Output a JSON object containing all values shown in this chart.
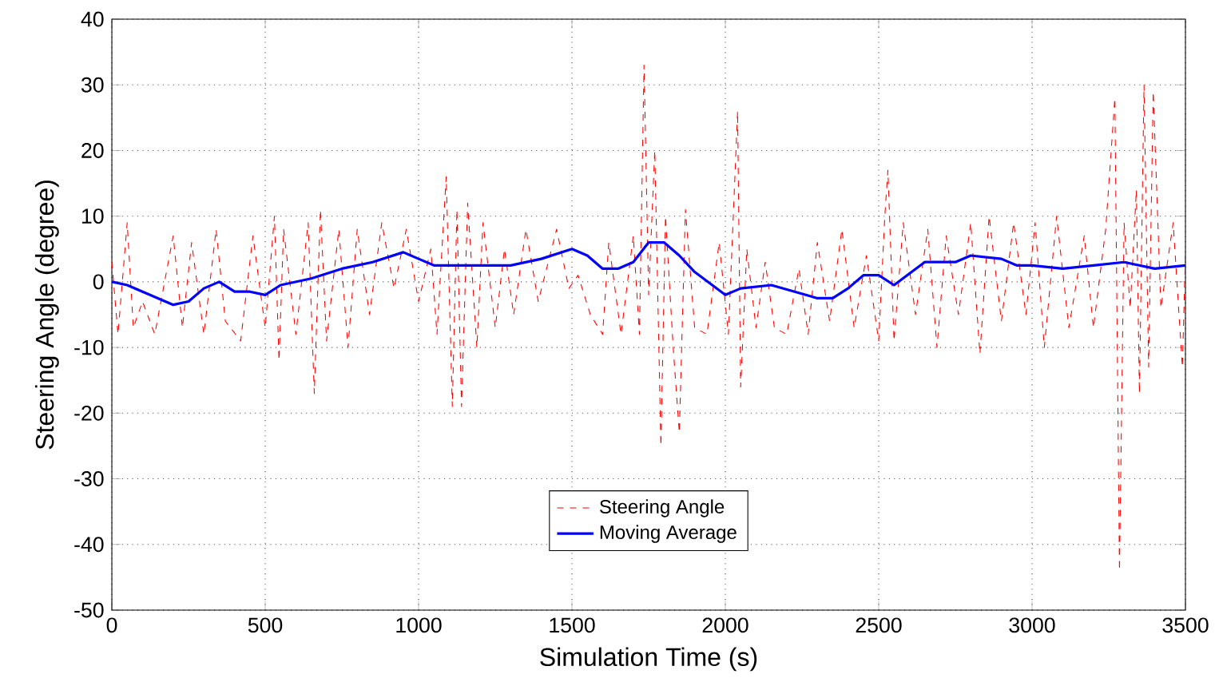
{
  "chart_data": {
    "type": "line",
    "xlabel": "Simulation Time (s)",
    "ylabel": "Steering Angle (degree)",
    "xlim": [
      0,
      3500
    ],
    "ylim": [
      -50,
      40
    ],
    "xticks": [
      0,
      500,
      1000,
      1500,
      2000,
      2500,
      3000,
      3500
    ],
    "yticks": [
      -50,
      -40,
      -30,
      -20,
      -10,
      0,
      10,
      20,
      30,
      40
    ],
    "grid": true,
    "legend": "bottom",
    "series": [
      {
        "name": "Steering Angle",
        "color": "#ff0000",
        "line_style": "dashed",
        "x": [
          0,
          20,
          50,
          70,
          100,
          140,
          200,
          230,
          260,
          300,
          340,
          370,
          420,
          460,
          500,
          530,
          545,
          560,
          600,
          640,
          660,
          680,
          700,
          740,
          770,
          800,
          840,
          880,
          920,
          960,
          1000,
          1040,
          1060,
          1090,
          1110,
          1125,
          1140,
          1160,
          1190,
          1210,
          1250,
          1280,
          1310,
          1350,
          1390,
          1450,
          1490,
          1520,
          1560,
          1600,
          1620,
          1660,
          1700,
          1720,
          1735,
          1750,
          1770,
          1790,
          1805,
          1830,
          1850,
          1870,
          1900,
          1940,
          1980,
          2010,
          2040,
          2050,
          2070,
          2100,
          2130,
          2160,
          2200,
          2240,
          2270,
          2300,
          2340,
          2380,
          2420,
          2460,
          2500,
          2520,
          2530,
          2550,
          2580,
          2620,
          2660,
          2690,
          2720,
          2760,
          2800,
          2830,
          2860,
          2900,
          2940,
          2980,
          3010,
          3040,
          3080,
          3120,
          3170,
          3200,
          3240,
          3270,
          3285,
          3300,
          3320,
          3340,
          3350,
          3365,
          3380,
          3395,
          3420,
          3460,
          3490,
          3500
        ],
        "values": [
          3,
          -8,
          9,
          -7,
          -3,
          -8,
          7,
          -7,
          6,
          -8,
          8,
          -6,
          -9,
          7,
          -7,
          10,
          -12,
          8,
          -8,
          9,
          -17,
          11,
          -9,
          8,
          -10,
          8,
          -5,
          9,
          -1,
          8,
          -3,
          5,
          -8,
          16,
          -19,
          11,
          -19,
          12,
          -10,
          9,
          -7,
          5,
          -5,
          8,
          -3,
          8,
          -1,
          1,
          -5,
          -8,
          6,
          -8,
          7,
          -8,
          33,
          -2,
          20,
          -25,
          10,
          -10,
          -23,
          11,
          -7,
          -8,
          6,
          -8,
          26,
          -16,
          5,
          -7,
          3,
          -7,
          -8,
          2,
          -8,
          6,
          -6,
          8,
          -7,
          4,
          -9,
          10,
          17,
          -9,
          9,
          -5,
          8,
          -10,
          7,
          -5,
          9,
          -11,
          10,
          -6,
          9,
          -5,
          9,
          -10,
          10,
          -7,
          7,
          -7,
          8,
          28,
          -44,
          9,
          -4,
          14,
          -17,
          30,
          -13,
          29,
          -4,
          9,
          -13,
          4
        ]
      },
      {
        "name": "Moving Average",
        "color": "#0000ff",
        "line_style": "solid",
        "x": [
          0,
          50,
          100,
          200,
          250,
          300,
          350,
          400,
          450,
          500,
          550,
          650,
          750,
          800,
          850,
          950,
          1000,
          1050,
          1150,
          1300,
          1400,
          1500,
          1550,
          1600,
          1650,
          1700,
          1750,
          1800,
          1850,
          1900,
          2000,
          2050,
          2150,
          2300,
          2350,
          2400,
          2450,
          2500,
          2550,
          2650,
          2750,
          2800,
          2900,
          2950,
          3000,
          3100,
          3200,
          3300,
          3400,
          3500
        ],
        "values": [
          0,
          -0.5,
          -1.5,
          -3.5,
          -3,
          -1,
          0,
          -1.5,
          -1.5,
          -2,
          -0.5,
          0.5,
          2,
          2.5,
          3,
          4.5,
          3.5,
          2.5,
          2.5,
          2.5,
          3.5,
          5,
          4,
          2,
          2,
          3,
          6,
          6,
          4,
          1.5,
          -2,
          -1,
          -0.5,
          -2.5,
          -2.5,
          -1,
          1,
          1,
          -0.5,
          3,
          3,
          4,
          3.5,
          2.5,
          2.5,
          2,
          2.5,
          3,
          2,
          2.5
        ]
      }
    ]
  }
}
